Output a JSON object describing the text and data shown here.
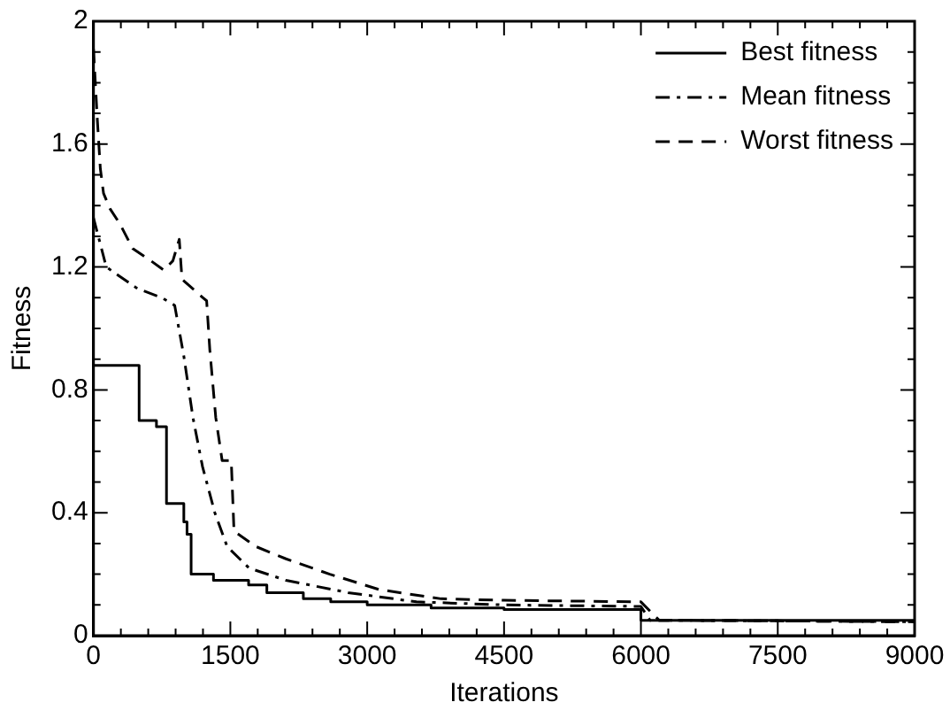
{
  "chart_data": {
    "type": "line",
    "xlabel": "Iterations",
    "ylabel": "Fitness",
    "xlim": [
      0,
      9000
    ],
    "ylim": [
      0,
      2
    ],
    "xticks": [
      0,
      1500,
      3000,
      4500,
      6000,
      7500,
      9000
    ],
    "yticks": [
      0,
      0.4,
      0.8,
      1.2,
      1.6,
      2
    ],
    "legend": "top right",
    "grid": false,
    "marker": "none",
    "series": [
      {
        "name": "Best fitness",
        "type": "step",
        "color": "#000000",
        "line_style": "solid",
        "x": [
          0,
          500,
          690,
          800,
          990,
          1025,
          1070,
          1315,
          1700,
          1900,
          2300,
          2600,
          3000,
          3700,
          4500,
          6000,
          6000,
          9000
        ],
        "values": [
          0.88,
          0.7,
          0.68,
          0.43,
          0.37,
          0.33,
          0.2,
          0.18,
          0.165,
          0.14,
          0.12,
          0.11,
          0.1,
          0.09,
          0.085,
          0.08,
          0.05,
          0.04
        ]
      },
      {
        "name": "Mean fitness",
        "color": "#000000",
        "line_style": "dashdot",
        "x": [
          0,
          140,
          480,
          750,
          890,
          990,
          1090,
          1195,
          1330,
          1465,
          1705,
          2110,
          2790,
          3540,
          4500,
          6000,
          6100,
          7500,
          9000
        ],
        "values": [
          1.36,
          1.2,
          1.13,
          1.1,
          1.075,
          0.91,
          0.71,
          0.55,
          0.4,
          0.29,
          0.22,
          0.18,
          0.14,
          0.11,
          0.1,
          0.095,
          0.05,
          0.048,
          0.045
        ]
      },
      {
        "name": "Worst fitness",
        "color": "#000000",
        "line_style": "dashed",
        "x": [
          0,
          40,
          75,
          110,
          180,
          290,
          430,
          630,
          770,
          870,
          940,
          970,
          1200,
          1240,
          1275,
          1340,
          1410,
          1510,
          1540,
          1780,
          2110,
          2590,
          3130,
          3810,
          4500,
          6000,
          6200,
          7500,
          9000
        ],
        "values": [
          1.91,
          1.69,
          1.52,
          1.44,
          1.39,
          1.34,
          1.26,
          1.22,
          1.19,
          1.22,
          1.29,
          1.16,
          1.1,
          1.09,
          0.93,
          0.71,
          0.57,
          0.57,
          0.34,
          0.29,
          0.25,
          0.2,
          0.15,
          0.12,
          0.115,
          0.11,
          0.05,
          0.048,
          0.045
        ]
      }
    ]
  }
}
